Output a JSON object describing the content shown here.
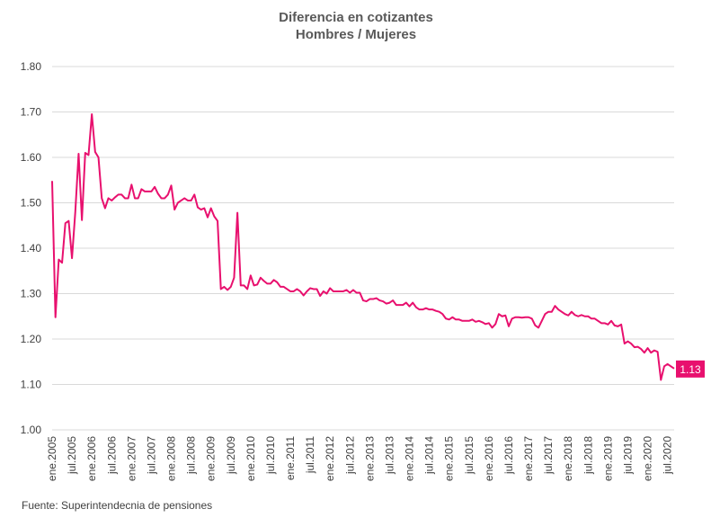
{
  "chart_data": {
    "type": "line",
    "title_lines": [
      "Diferencia en cotizantes",
      "Hombres / Mujeres"
    ],
    "ylim": [
      1.0,
      1.8
    ],
    "yticks": [
      "1.00",
      "1.10",
      "1.20",
      "1.30",
      "1.40",
      "1.50",
      "1.60",
      "1.70",
      "1.80"
    ],
    "y_tick_values": [
      1.0,
      1.1,
      1.2,
      1.3,
      1.4,
      1.5,
      1.6,
      1.7,
      1.8
    ],
    "grid": true,
    "x_start": "ene.2005",
    "x_end": "sep.2020",
    "xtick_labels": [
      "ene.2005",
      "jul.2005",
      "ene.2006",
      "jul.2006",
      "ene.2007",
      "jul.2007",
      "ene.2008",
      "jul.2008",
      "ene.2009",
      "jul.2009",
      "ene.2010",
      "jul.2010",
      "ene.2011",
      "jul.2011",
      "ene.2012",
      "jul.2012",
      "ene.2013",
      "jul.2013",
      "ene.2014",
      "jul.2014",
      "ene.2015",
      "jul.2015",
      "ene.2016",
      "jul.2016",
      "ene.2017",
      "jul.2017",
      "ene.2018",
      "jul.2018",
      "ene.2019",
      "jul.2019",
      "ene.2020",
      "jul.2020"
    ],
    "series": [
      {
        "color": "#e8106e",
        "values": [
          1.548,
          1.248,
          1.375,
          1.368,
          1.455,
          1.46,
          1.378,
          1.48,
          1.608,
          1.462,
          1.61,
          1.605,
          1.695,
          1.612,
          1.6,
          1.51,
          1.488,
          1.51,
          1.505,
          1.512,
          1.518,
          1.518,
          1.51,
          1.51,
          1.54,
          1.51,
          1.51,
          1.53,
          1.525,
          1.525,
          1.525,
          1.535,
          1.52,
          1.51,
          1.51,
          1.518,
          1.538,
          1.485,
          1.5,
          1.505,
          1.51,
          1.505,
          1.505,
          1.518,
          1.49,
          1.485,
          1.488,
          1.468,
          1.488,
          1.47,
          1.46,
          1.31,
          1.315,
          1.308,
          1.315,
          1.335,
          1.478,
          1.318,
          1.318,
          1.31,
          1.34,
          1.318,
          1.32,
          1.335,
          1.328,
          1.322,
          1.322,
          1.33,
          1.325,
          1.315,
          1.315,
          1.31,
          1.305,
          1.305,
          1.31,
          1.305,
          1.296,
          1.305,
          1.312,
          1.31,
          1.31,
          1.295,
          1.305,
          1.3,
          1.312,
          1.305,
          1.305,
          1.305,
          1.305,
          1.308,
          1.302,
          1.308,
          1.302,
          1.302,
          1.285,
          1.283,
          1.288,
          1.288,
          1.29,
          1.285,
          1.283,
          1.278,
          1.28,
          1.285,
          1.275,
          1.275,
          1.275,
          1.28,
          1.272,
          1.28,
          1.27,
          1.265,
          1.265,
          1.268,
          1.265,
          1.265,
          1.262,
          1.26,
          1.255,
          1.245,
          1.243,
          1.248,
          1.243,
          1.243,
          1.24,
          1.24,
          1.24,
          1.243,
          1.238,
          1.24,
          1.237,
          1.233,
          1.235,
          1.225,
          1.233,
          1.255,
          1.25,
          1.252,
          1.228,
          1.245,
          1.248,
          1.248,
          1.247,
          1.248,
          1.248,
          1.245,
          1.23,
          1.225,
          1.24,
          1.255,
          1.26,
          1.26,
          1.273,
          1.265,
          1.26,
          1.255,
          1.252,
          1.26,
          1.253,
          1.25,
          1.253,
          1.25,
          1.25,
          1.245,
          1.245,
          1.24,
          1.235,
          1.235,
          1.232,
          1.24,
          1.23,
          1.228,
          1.232,
          1.19,
          1.195,
          1.19,
          1.182,
          1.183,
          1.178,
          1.17,
          1.18,
          1.17,
          1.175,
          1.172,
          1.11,
          1.14,
          1.145,
          1.14,
          1.135
        ]
      }
    ],
    "end_label": "1.13",
    "source": "Fuente: Superintendecnia de pensiones"
  }
}
